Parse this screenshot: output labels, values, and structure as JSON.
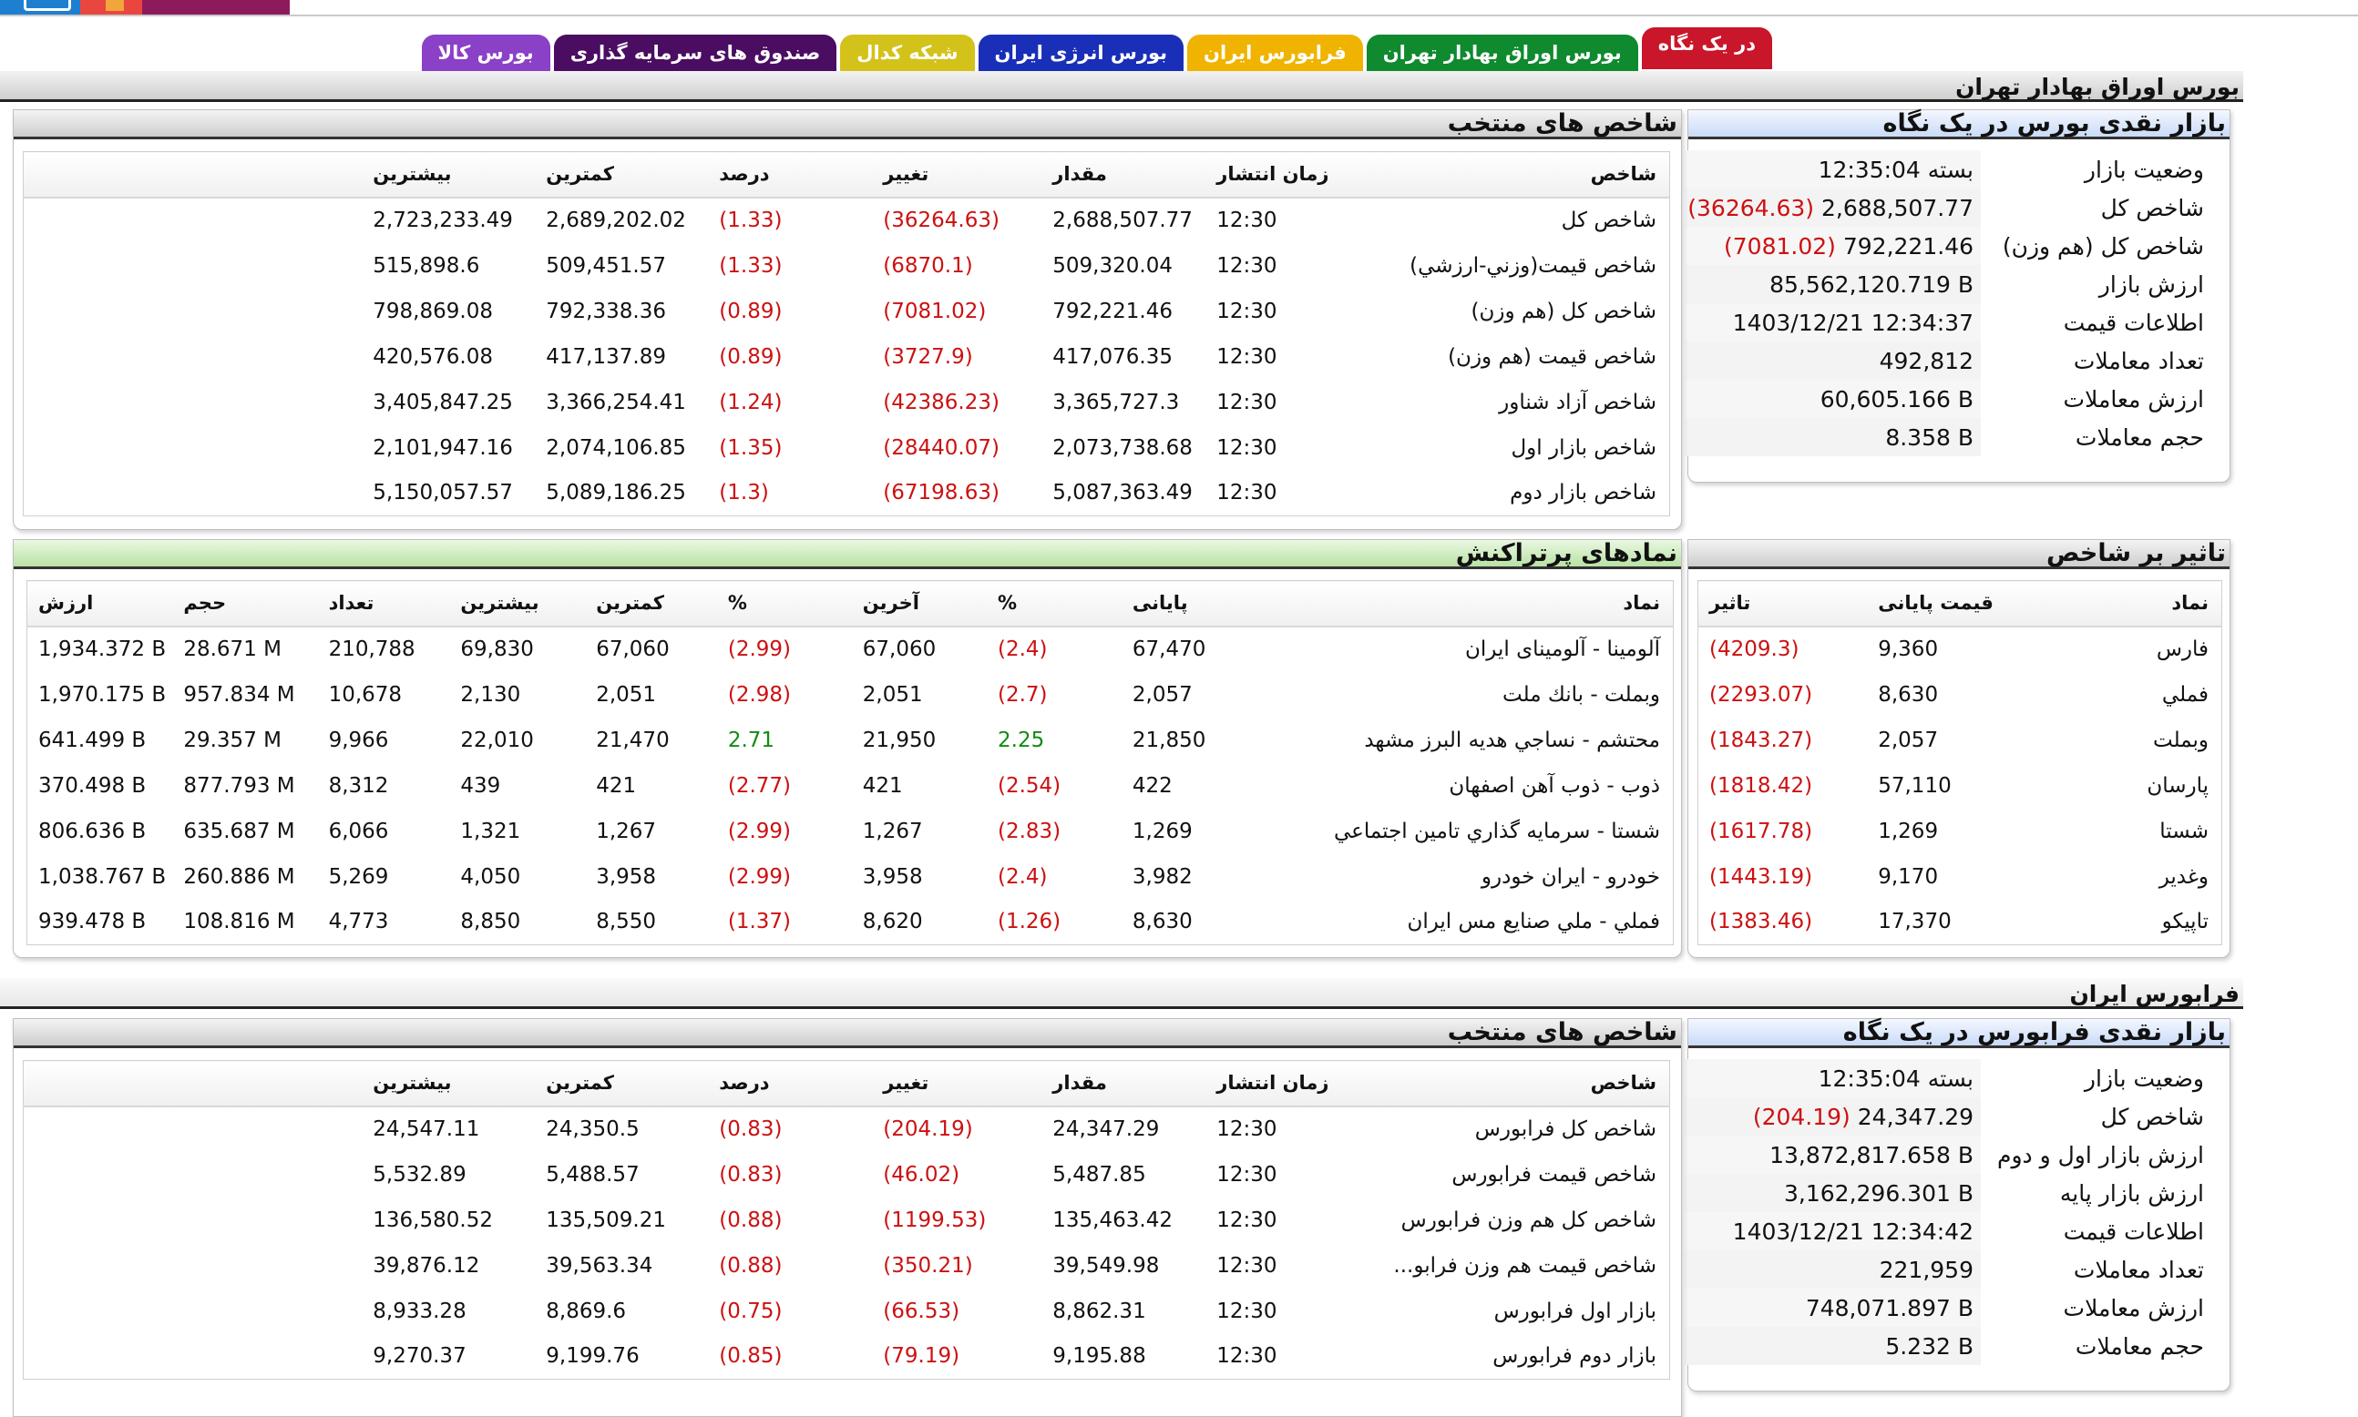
{
  "tabs": [
    {
      "label": "در یک نگاه",
      "color": "#c9162a",
      "active": true
    },
    {
      "label": "بورس اوراق بهادار تهران",
      "color": "#0f8a2e",
      "active": false
    },
    {
      "label": "فرابورس ایران",
      "color": "#f0b400",
      "active": false
    },
    {
      "label": "بورس انرژی ایران",
      "color": "#1a2fb8",
      "active": false
    },
    {
      "label": "شبکه کدال",
      "color": "#d3c21a",
      "active": false
    },
    {
      "label": "صندوق های سرمایه گذاری",
      "color": "#4a0d62",
      "active": false
    },
    {
      "label": "بورس کالا",
      "color": "#8b40c8",
      "active": false
    }
  ],
  "tse": {
    "section_title": "بورس اوراق بهادار تهران",
    "summary": {
      "title": "بازار نقدی بورس در یک نگاه",
      "rows": [
        {
          "label": "وضعیت بازار",
          "value": "بسته 12:35:04",
          "change": ""
        },
        {
          "label": "شاخص کل",
          "value": "2,688,507.77",
          "change": "(36264.63)"
        },
        {
          "label": "شاخص کل (هم وزن)",
          "value": "792,221.46",
          "change": "(7081.02)"
        },
        {
          "label": "ارزش بازار",
          "value": "85,562,120.719 B",
          "change": ""
        },
        {
          "label": "اطلاعات قیمت",
          "value": "1403/12/21 12:34:37",
          "change": ""
        },
        {
          "label": "تعداد معاملات",
          "value": "492,812",
          "change": ""
        },
        {
          "label": "ارزش معاملات",
          "value": "60,605.166 B",
          "change": ""
        },
        {
          "label": "حجم معاملات",
          "value": "8.358 B",
          "change": ""
        }
      ]
    },
    "indices": {
      "title": "شاخص های منتخب",
      "headers": [
        "شاخص",
        "زمان انتشار",
        "مقدار",
        "تغییر",
        "درصد",
        "کمترین",
        "بیشترین"
      ],
      "rows": [
        [
          "شاخص کل",
          "12:30",
          "2,688,507.77",
          "(36264.63)",
          "(1.33)",
          "2,689,202.02",
          "2,723,233.49"
        ],
        [
          "شاخص قيمت(وزني-ارزشي)",
          "12:30",
          "509,320.04",
          "(6870.1)",
          "(1.33)",
          "509,451.57",
          "515,898.6"
        ],
        [
          "شاخص کل (هم وزن)",
          "12:30",
          "792,221.46",
          "(7081.02)",
          "(0.89)",
          "792,338.36",
          "798,869.08"
        ],
        [
          "شاخص قیمت (هم وزن)",
          "12:30",
          "417,076.35",
          "(3727.9)",
          "(0.89)",
          "417,137.89",
          "420,576.08"
        ],
        [
          "شاخص آزاد شناور",
          "12:30",
          "3,365,727.3",
          "(42386.23)",
          "(1.24)",
          "3,366,254.41",
          "3,405,847.25"
        ],
        [
          "شاخص بازار اول",
          "12:30",
          "2,073,738.68",
          "(28440.07)",
          "(1.35)",
          "2,074,106.85",
          "2,101,947.16"
        ],
        [
          "شاخص بازار دوم",
          "12:30",
          "5,087,363.49",
          "(67198.63)",
          "(1.3)",
          "5,089,186.25",
          "5,150,057.57"
        ]
      ]
    },
    "impact": {
      "title": "تاثیر بر شاخص",
      "headers": [
        "نماد",
        "قیمت پایانی",
        "تاثیر"
      ],
      "rows": [
        [
          "فارس",
          "9,360",
          "(4209.3)"
        ],
        [
          "فملي",
          "8,630",
          "(2293.07)"
        ],
        [
          "وبملت",
          "2,057",
          "(1843.27)"
        ],
        [
          "پارسان",
          "57,110",
          "(1818.42)"
        ],
        [
          "شستا",
          "1,269",
          "(1617.78)"
        ],
        [
          "وغدير",
          "9,170",
          "(1443.19)"
        ],
        [
          "تاپيکو",
          "17,370",
          "(1383.46)"
        ]
      ]
    },
    "most_traded": {
      "title": "نمادهای پرتراکنش",
      "headers": [
        "نماد",
        "پایانی",
        "%",
        "آخرین",
        "%",
        "کمترین",
        "بیشترین",
        "تعداد",
        "حجم",
        "ارزش"
      ],
      "rows": [
        [
          "آلومينا - آلومينای ايران",
          "67,470",
          "(2.4)",
          "67,060",
          "(2.99)",
          "67,060",
          "69,830",
          "210,788",
          "28.671 M",
          "1,934.372 B"
        ],
        [
          "وبملت - بانك ملت",
          "2,057",
          "(2.7)",
          "2,051",
          "(2.98)",
          "2,051",
          "2,130",
          "10,678",
          "957.834 M",
          "1,970.175 B"
        ],
        [
          "محتشم - نساجي هديه البرز مشهد",
          "21,850",
          "2.25",
          "21,950",
          "2.71",
          "21,470",
          "22,010",
          "9,966",
          "29.357 M",
          "641.499 B"
        ],
        [
          "ذوب - ذوب آهن اصفهان",
          "422",
          "(2.54)",
          "421",
          "(2.77)",
          "421",
          "439",
          "8,312",
          "877.793 M",
          "370.498 B"
        ],
        [
          "شستا - سرمايه گذاري تامين اجتماعي",
          "1,269",
          "(2.83)",
          "1,267",
          "(2.99)",
          "1,267",
          "1,321",
          "6,066",
          "635.687 M",
          "806.636 B"
        ],
        [
          "خودرو - ايران خودرو",
          "3,982",
          "(2.4)",
          "3,958",
          "(2.99)",
          "3,958",
          "4,050",
          "5,269",
          "260.886 M",
          "1,038.767 B"
        ],
        [
          "فملي - ملي صنايع مس ايران",
          "8,630",
          "(1.26)",
          "8,620",
          "(1.37)",
          "8,550",
          "8,850",
          "4,773",
          "108.816 M",
          "939.478 B"
        ]
      ]
    }
  },
  "ifb": {
    "section_title": "فرابورس ایران",
    "summary": {
      "title": "بازار نقدی فرابورس در یک نگاه",
      "rows": [
        {
          "label": "وضعیت بازار",
          "value": "بسته 12:35:04",
          "change": ""
        },
        {
          "label": "شاخص کل",
          "value": "24,347.29",
          "change": "(204.19)"
        },
        {
          "label": "ارزش بازار اول و دوم",
          "value": "13,872,817.658 B",
          "change": ""
        },
        {
          "label": "ارزش بازار پایه",
          "value": "3,162,296.301 B",
          "change": ""
        },
        {
          "label": "اطلاعات قیمت",
          "value": "1403/12/21 12:34:42",
          "change": ""
        },
        {
          "label": "تعداد معاملات",
          "value": "221,959",
          "change": ""
        },
        {
          "label": "ارزش معاملات",
          "value": "748,071.897 B",
          "change": ""
        },
        {
          "label": "حجم معاملات",
          "value": "5.232 B",
          "change": ""
        }
      ]
    },
    "indices": {
      "title": "شاخص های منتخب",
      "headers": [
        "شاخص",
        "زمان انتشار",
        "مقدار",
        "تغییر",
        "درصد",
        "کمترین",
        "بیشترین"
      ],
      "rows": [
        [
          "شاخص کل فرابورس",
          "12:30",
          "24,347.29",
          "(204.19)",
          "(0.83)",
          "24,350.5",
          "24,547.11"
        ],
        [
          "شاخص قیمت فرابورس",
          "12:30",
          "5,487.85",
          "(46.02)",
          "(0.83)",
          "5,488.57",
          "5,532.89"
        ],
        [
          "شاخص کل هم وزن فرابورس",
          "12:30",
          "135,463.42",
          "(1199.53)",
          "(0.88)",
          "135,509.21",
          "136,580.52"
        ],
        [
          "شاخص قیمت هم وزن فرابو...",
          "12:30",
          "39,549.98",
          "(350.21)",
          "(0.88)",
          "39,563.34",
          "39,876.12"
        ],
        [
          "بازار اول فرابورس",
          "12:30",
          "8,862.31",
          "(66.53)",
          "(0.75)",
          "8,869.6",
          "8,933.28"
        ],
        [
          "بازار دوم فرابورس",
          "12:30",
          "9,195.88",
          "(79.19)",
          "(0.85)",
          "9,199.76",
          "9,270.37"
        ]
      ]
    }
  }
}
